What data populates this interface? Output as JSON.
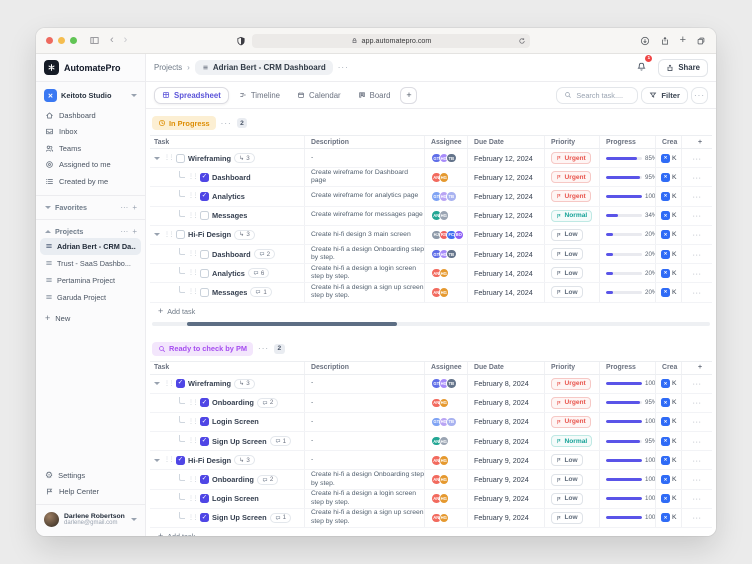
{
  "browser": {
    "url": "app.automatepro.com"
  },
  "ui": {
    "more": "···",
    "add": "+",
    "subtask_arrow": "↳",
    "gear": "⚙",
    "back": "‹",
    "forward": "›",
    "x_glyph": "✕"
  },
  "sidebar": {
    "logo_text": "AutomatePro",
    "workspace_name": "Keitoto Studio",
    "nav": [
      {
        "icon": "home",
        "label": "Dashboard"
      },
      {
        "icon": "inbox",
        "label": "Inbox"
      },
      {
        "icon": "users",
        "label": "Teams"
      },
      {
        "icon": "target",
        "label": "Assigned to me"
      },
      {
        "icon": "list",
        "label": "Created by me"
      }
    ],
    "favorites_label": "Favorites",
    "projects_label": "Projects",
    "projects": [
      {
        "label": "Adrian Bert - CRM Da...",
        "active": true
      },
      {
        "label": "Trust - SaaS Dashbo...",
        "active": false
      },
      {
        "label": "Pertamina Project",
        "active": false
      },
      {
        "label": "Garuda Project",
        "active": false
      }
    ],
    "new_label": "New",
    "settings_label": "Settings",
    "help_label": "Help Center",
    "user": {
      "name": "Darlene Robertson",
      "email": "darlene@gmail.com"
    }
  },
  "header": {
    "breadcrumb_root": "Projects",
    "breadcrumb_sep": "›",
    "breadcrumb_current": "Adrian Bert - CRM Dashboard",
    "notification_count": "1",
    "share_label": "Share"
  },
  "tabs": {
    "items": [
      {
        "label": "Spreadsheet",
        "icon": "grid",
        "active": true
      },
      {
        "label": "Timeline",
        "icon": "timeline",
        "active": false
      },
      {
        "label": "Calendar",
        "icon": "calendar",
        "active": false
      },
      {
        "label": "Board",
        "icon": "board",
        "active": false
      }
    ]
  },
  "toolbar": {
    "search_placeholder": "Search task....",
    "filter_label": "Filter"
  },
  "table": {
    "columns": [
      "Task",
      "Description",
      "Assignee",
      "Due Date",
      "Priority",
      "Progress",
      "Crea"
    ],
    "add_task_label": "Add task",
    "created_clipped": "K"
  },
  "sections": [
    {
      "title": "In Progress",
      "count": "2",
      "theme": "amber",
      "icon": "clockprog",
      "rows": [
        {
          "child": false,
          "caret": true,
          "checked": false,
          "name": "Wireframing",
          "badge": {
            "kind": "subtask",
            "label": "3"
          },
          "desc": "-",
          "assignees": [
            {
              "t": "GT",
              "c": "#5f6ee8"
            },
            {
              "t": "HG",
              "c": "#a78bfa"
            },
            {
              "t": "TB",
              "c": "#64748b"
            }
          ],
          "due": "February 12, 2024",
          "priority": {
            "label": "Urgent",
            "level": "urgent"
          },
          "progress": "85%"
        },
        {
          "child": true,
          "caret": false,
          "checked": true,
          "name": "Dashboard",
          "badge": null,
          "desc": "Create wireframe for Dashboard page",
          "assignees": [
            {
              "t": "AN",
              "c": "#f26a5e"
            },
            {
              "t": "HG",
              "c": "#e5992f"
            }
          ],
          "due": "February 12, 2024",
          "priority": {
            "label": "Urgent",
            "level": "urgent"
          },
          "progress": "95%"
        },
        {
          "child": true,
          "caret": false,
          "checked": true,
          "name": "Analytics",
          "badge": null,
          "desc": "Create wireframe for analytics page",
          "assignees": [
            {
              "t": "GT",
              "c": "#7fa3f4"
            },
            {
              "t": "HG",
              "c": "#b9a4f4"
            },
            {
              "t": "TB",
              "c": "#a8b2f0"
            }
          ],
          "due": "February 12, 2024",
          "priority": {
            "label": "Urgent",
            "level": "urgent"
          },
          "progress": "100%"
        },
        {
          "child": true,
          "caret": false,
          "checked": false,
          "name": "Messages",
          "badge": null,
          "desc": "Create wireframe for messages page",
          "assignees": [
            {
              "t": "AN",
              "c": "#23a694"
            },
            {
              "t": "HG",
              "c": "#9aa4b2"
            }
          ],
          "due": "February 12, 2024",
          "priority": {
            "label": "Normal",
            "level": "normal"
          },
          "progress": "34%"
        },
        {
          "child": false,
          "caret": true,
          "checked": false,
          "name": "Hi-Fi Design",
          "badge": {
            "kind": "subtask",
            "label": "3"
          },
          "desc": "Create hi-fi design  3 main screen",
          "assignees": [
            {
              "t": "HJ",
              "c": "#8d99a8"
            },
            {
              "t": "RS",
              "c": "#ee6060"
            },
            {
              "t": "FC",
              "c": "#3f6ff0"
            },
            {
              "t": "BO",
              "c": "#8a5cf6"
            }
          ],
          "due": "February 14, 2024",
          "priority": {
            "label": "Low",
            "level": "low"
          },
          "progress": "20%"
        },
        {
          "child": true,
          "caret": false,
          "checked": false,
          "name": "Dashboard",
          "badge": {
            "kind": "comment",
            "label": "2"
          },
          "desc": "Create hi-fi a design Onboarding step by step.",
          "assignees": [
            {
              "t": "GT",
              "c": "#5f6ee8"
            },
            {
              "t": "HG",
              "c": "#a78bfa"
            },
            {
              "t": "TB",
              "c": "#64748b"
            }
          ],
          "due": "February 14, 2024",
          "priority": {
            "label": "Low",
            "level": "low"
          },
          "progress": "20%"
        },
        {
          "child": true,
          "caret": false,
          "checked": false,
          "name": "Analytics",
          "badge": {
            "kind": "comment",
            "label": "6"
          },
          "desc": "Create hi-fi a design a login screen step by step.",
          "assignees": [
            {
              "t": "AN",
              "c": "#f26a5e"
            },
            {
              "t": "HG",
              "c": "#e5992f"
            }
          ],
          "due": "February 14, 2024",
          "priority": {
            "label": "Low",
            "level": "low"
          },
          "progress": "20%"
        },
        {
          "child": true,
          "caret": false,
          "checked": false,
          "name": "Messages",
          "badge": {
            "kind": "comment",
            "label": "1"
          },
          "desc": "Create hi-fi a design a sign up screen step by step.",
          "assignees": [
            {
              "t": "AN",
              "c": "#f26a5e"
            },
            {
              "t": "HG",
              "c": "#e5992f"
            }
          ],
          "due": "February 14, 2024",
          "priority": {
            "label": "Low",
            "level": "low"
          },
          "progress": "20%"
        }
      ]
    },
    {
      "title": "Ready to check by PM",
      "count": "2",
      "theme": "purple",
      "icon": "search",
      "rows": [
        {
          "child": false,
          "caret": true,
          "checked": true,
          "name": "Wireframing",
          "badge": {
            "kind": "subtask",
            "label": "3"
          },
          "desc": "-",
          "assignees": [
            {
              "t": "GT",
              "c": "#5f6ee8"
            },
            {
              "t": "HG",
              "c": "#a78bfa"
            },
            {
              "t": "TB",
              "c": "#64748b"
            }
          ],
          "due": "February 8, 2024",
          "priority": {
            "label": "Urgent",
            "level": "urgent"
          },
          "progress": "100%"
        },
        {
          "child": true,
          "caret": false,
          "checked": true,
          "name": "Onboarding",
          "badge": {
            "kind": "comment",
            "label": "2"
          },
          "desc": "-",
          "assignees": [
            {
              "t": "AN",
              "c": "#f26a5e"
            },
            {
              "t": "HG",
              "c": "#e5992f"
            }
          ],
          "due": "February 8, 2024",
          "priority": {
            "label": "Urgent",
            "level": "urgent"
          },
          "progress": "95%"
        },
        {
          "child": true,
          "caret": false,
          "checked": true,
          "name": "Login Screen",
          "badge": null,
          "desc": "-",
          "assignees": [
            {
              "t": "GT",
              "c": "#7fa3f4"
            },
            {
              "t": "HG",
              "c": "#b9a4f4"
            },
            {
              "t": "TB",
              "c": "#a8b2f0"
            }
          ],
          "due": "February 8, 2024",
          "priority": {
            "label": "Urgent",
            "level": "urgent"
          },
          "progress": "100%"
        },
        {
          "child": true,
          "caret": false,
          "checked": true,
          "name": "Sign Up Screen",
          "badge": {
            "kind": "comment",
            "label": "1"
          },
          "desc": "-",
          "assignees": [
            {
              "t": "AN",
              "c": "#23a694"
            },
            {
              "t": "HG",
              "c": "#9aa4b2"
            }
          ],
          "due": "February 8, 2024",
          "priority": {
            "label": "Normal",
            "level": "normal"
          },
          "progress": "95%"
        },
        {
          "child": false,
          "caret": true,
          "checked": true,
          "name": "Hi-Fi Design",
          "badge": {
            "kind": "subtask",
            "label": "3"
          },
          "desc": "-",
          "assignees": [
            {
              "t": "AN",
              "c": "#f26a5e"
            },
            {
              "t": "HG",
              "c": "#e5992f"
            }
          ],
          "due": "February 9, 2024",
          "priority": {
            "label": "Low",
            "level": "low"
          },
          "progress": "100%"
        },
        {
          "child": true,
          "caret": false,
          "checked": true,
          "name": "Onboarding",
          "badge": {
            "kind": "comment",
            "label": "2"
          },
          "desc": "Create hi-fi a design Onboarding step by step.",
          "assignees": [
            {
              "t": "AN",
              "c": "#f26a5e"
            },
            {
              "t": "HG",
              "c": "#e5992f"
            }
          ],
          "due": "February 9, 2024",
          "priority": {
            "label": "Low",
            "level": "low"
          },
          "progress": "100%"
        },
        {
          "child": true,
          "caret": false,
          "checked": true,
          "name": "Login Screen",
          "badge": null,
          "desc": "Create hi-fi a design a login screen step by step.",
          "assignees": [
            {
              "t": "AN",
              "c": "#f26a5e"
            },
            {
              "t": "HG",
              "c": "#e5992f"
            }
          ],
          "due": "February 9, 2024",
          "priority": {
            "label": "Low",
            "level": "low"
          },
          "progress": "100%"
        },
        {
          "child": true,
          "caret": false,
          "checked": true,
          "name": "Sign Up Screen",
          "badge": {
            "kind": "comment",
            "label": "1"
          },
          "desc": "Create hi-fi a design a sign up screen step by step.",
          "assignees": [
            {
              "t": "AN",
              "c": "#f26a5e"
            },
            {
              "t": "HG",
              "c": "#e5992f"
            }
          ],
          "due": "February 9, 2024",
          "priority": {
            "label": "Low",
            "level": "low"
          },
          "progress": "100%"
        }
      ]
    }
  ]
}
